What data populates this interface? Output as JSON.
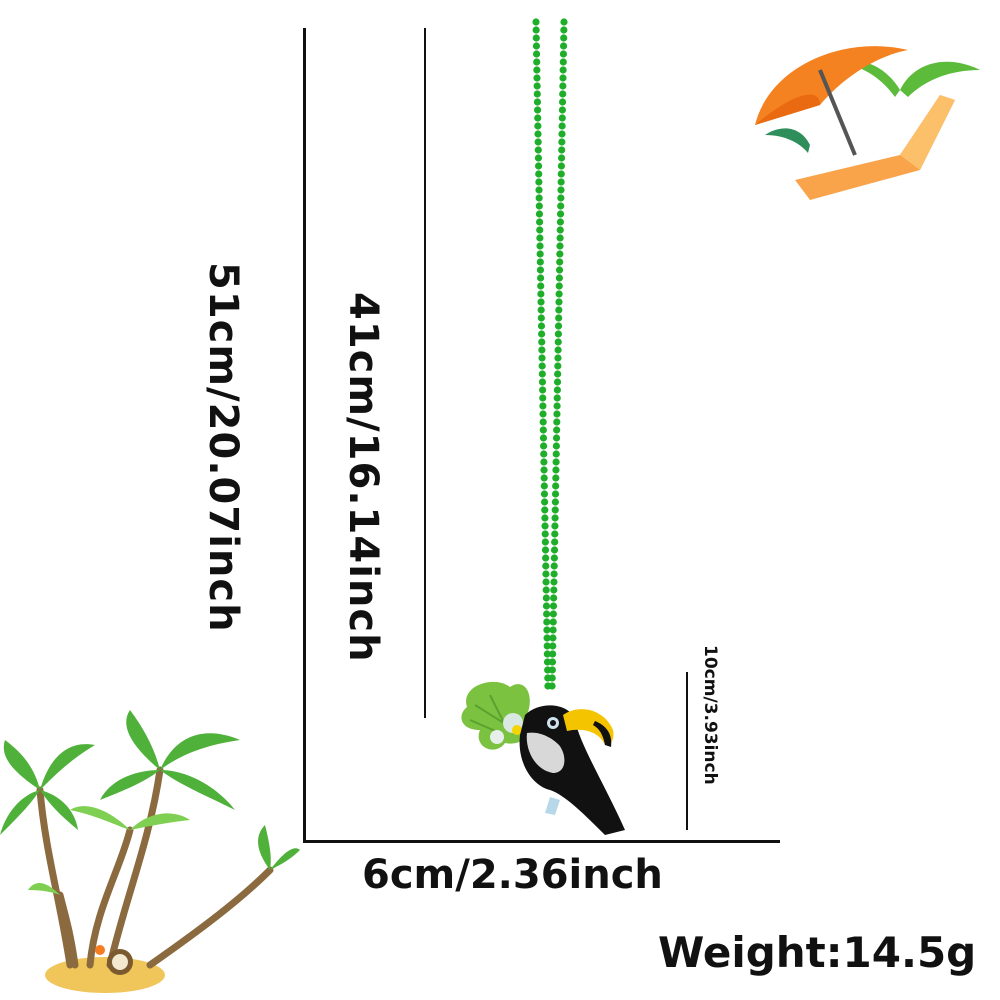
{
  "dimensions": {
    "total_length": "51cm/20.07inch",
    "chain_length": "41cm/16.14inch",
    "pendant_height": "10cm/3.93inch",
    "pendant_width": "6cm/2.36inch",
    "weight": "Weight:14.5g"
  },
  "colors": {
    "bead_green": "#1fae2a",
    "toucan_black": "#111111",
    "beak_yellow": "#f5c400",
    "leaf_green": "#7cc241",
    "umbrella_orange": "#f58220",
    "palm_green": "#5dbb3b"
  },
  "decorations": {
    "top_right": "beach-umbrella-chair-icon",
    "bottom_left": "palm-trees-island-icon"
  }
}
